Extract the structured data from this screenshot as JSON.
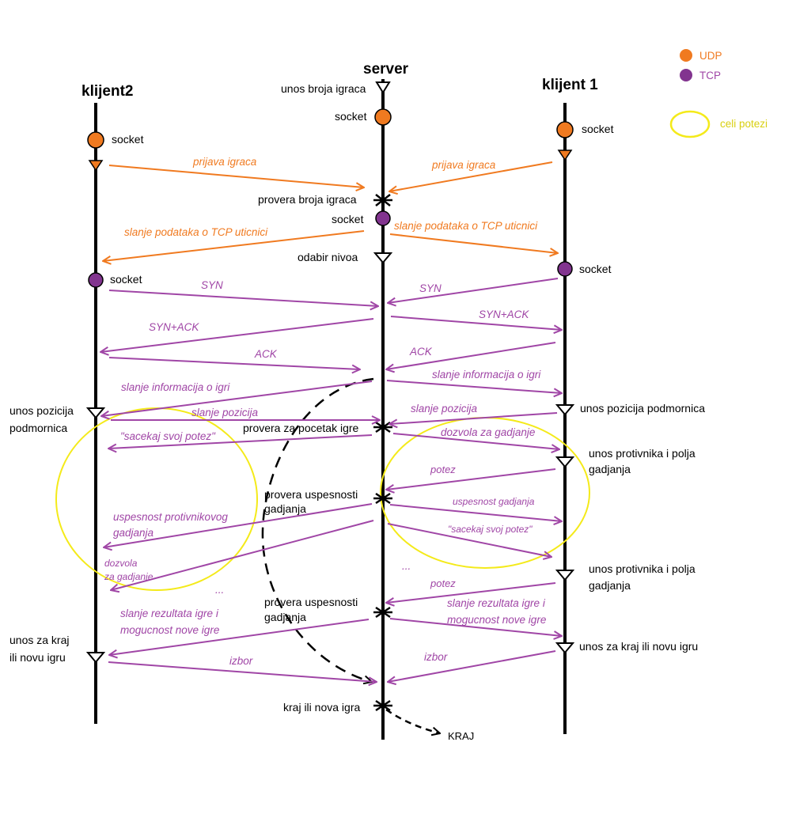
{
  "colors": {
    "udp": "#f07a20",
    "tcp": "#a046a6",
    "tcp_dot": "#82348f",
    "celi_potezi": "#f4ea1a",
    "line": "#000000"
  },
  "legend": {
    "udp": "UDP",
    "tcp": "TCP",
    "celi_potezi": "celi potezi"
  },
  "actors": {
    "klijent2": "klijent2",
    "server": "server",
    "klijent1": "klijent 1"
  },
  "server_labels": {
    "unos_broja": "unos broja igraca",
    "socket1": "socket",
    "provera_broja": "provera broja igraca",
    "socket2": "socket",
    "odabir_nivoa": "odabir nivoa",
    "provera_pocetak": "provera za pocetak igre",
    "provera_uspesnosti1_a": "provera uspesnosti",
    "provera_uspesnosti1_b": "gadjanja",
    "provera_uspesnosti2_a": "provera uspesnosti",
    "provera_uspesnosti2_b": "gadjanja",
    "kraj_ili_nova": "kraj ili nova igra",
    "kraj": "KRAJ"
  },
  "left_labels": {
    "socket_udp": "socket",
    "socket_tcp": "socket",
    "unos_pozicija_a": "unos pozicija",
    "unos_pozicija_b": "podmornica",
    "unos_kraj_a": "unos za kraj",
    "unos_kraj_b": "ili novu igru"
  },
  "right_labels": {
    "socket_udp": "socket",
    "socket_tcp": "socket",
    "unos_pozicija": "unos pozicija podmornica",
    "unos_protivnika1_a": "unos protivnika i polja",
    "unos_protivnika1_b": "gadjanja",
    "unos_protivnika2_a": "unos protivnika i polja",
    "unos_protivnika2_b": "gadjanja",
    "unos_kraj": "unos za kraj ili novu igru"
  },
  "messages": {
    "prijava_left": "prijava igraca",
    "prijava_right": "prijava igraca",
    "slanje_tcp_left": "slanje podataka o TCP uticnici",
    "slanje_tcp_right": "slanje podataka o TCP uticnici",
    "syn_left": "SYN",
    "syn_right": "SYN",
    "synack_left": "SYN+ACK",
    "synack_right": "SYN+ACK",
    "ack_left": "ACK",
    "ack_right": "ACK",
    "info_left": "slanje informacija o igri",
    "info_right": "slanje informacija o igri",
    "pozicija_left": "slanje pozicija",
    "pozicija_right": "slanje pozicija",
    "sacekaj_left": "\"sacekaj svoj potez\"",
    "dozvola_right": "dozvola za gadjanje",
    "potez1": "potez",
    "uspesnost_gadjanja": "uspesnost gadjanja",
    "sacekaj_right": "\"sacekaj svoj potez\"",
    "uspesnost_prot_a": "uspesnost protivnikovog",
    "uspesnost_prot_b": "gadjanja",
    "dozvola_left_a": "dozvola",
    "dozvola_left_b": "za gadjanje",
    "ellipsis_left": "...",
    "ellipsis_right": "...",
    "potez2": "potez",
    "rezultat_left_a": "slanje rezultata igre i",
    "rezultat_left_b": "mogucnost nove igre",
    "rezultat_right_a": "slanje rezultata igre i",
    "rezultat_right_b": "mogucnost nove igre",
    "izbor_left": "izbor",
    "izbor_right": "izbor"
  }
}
